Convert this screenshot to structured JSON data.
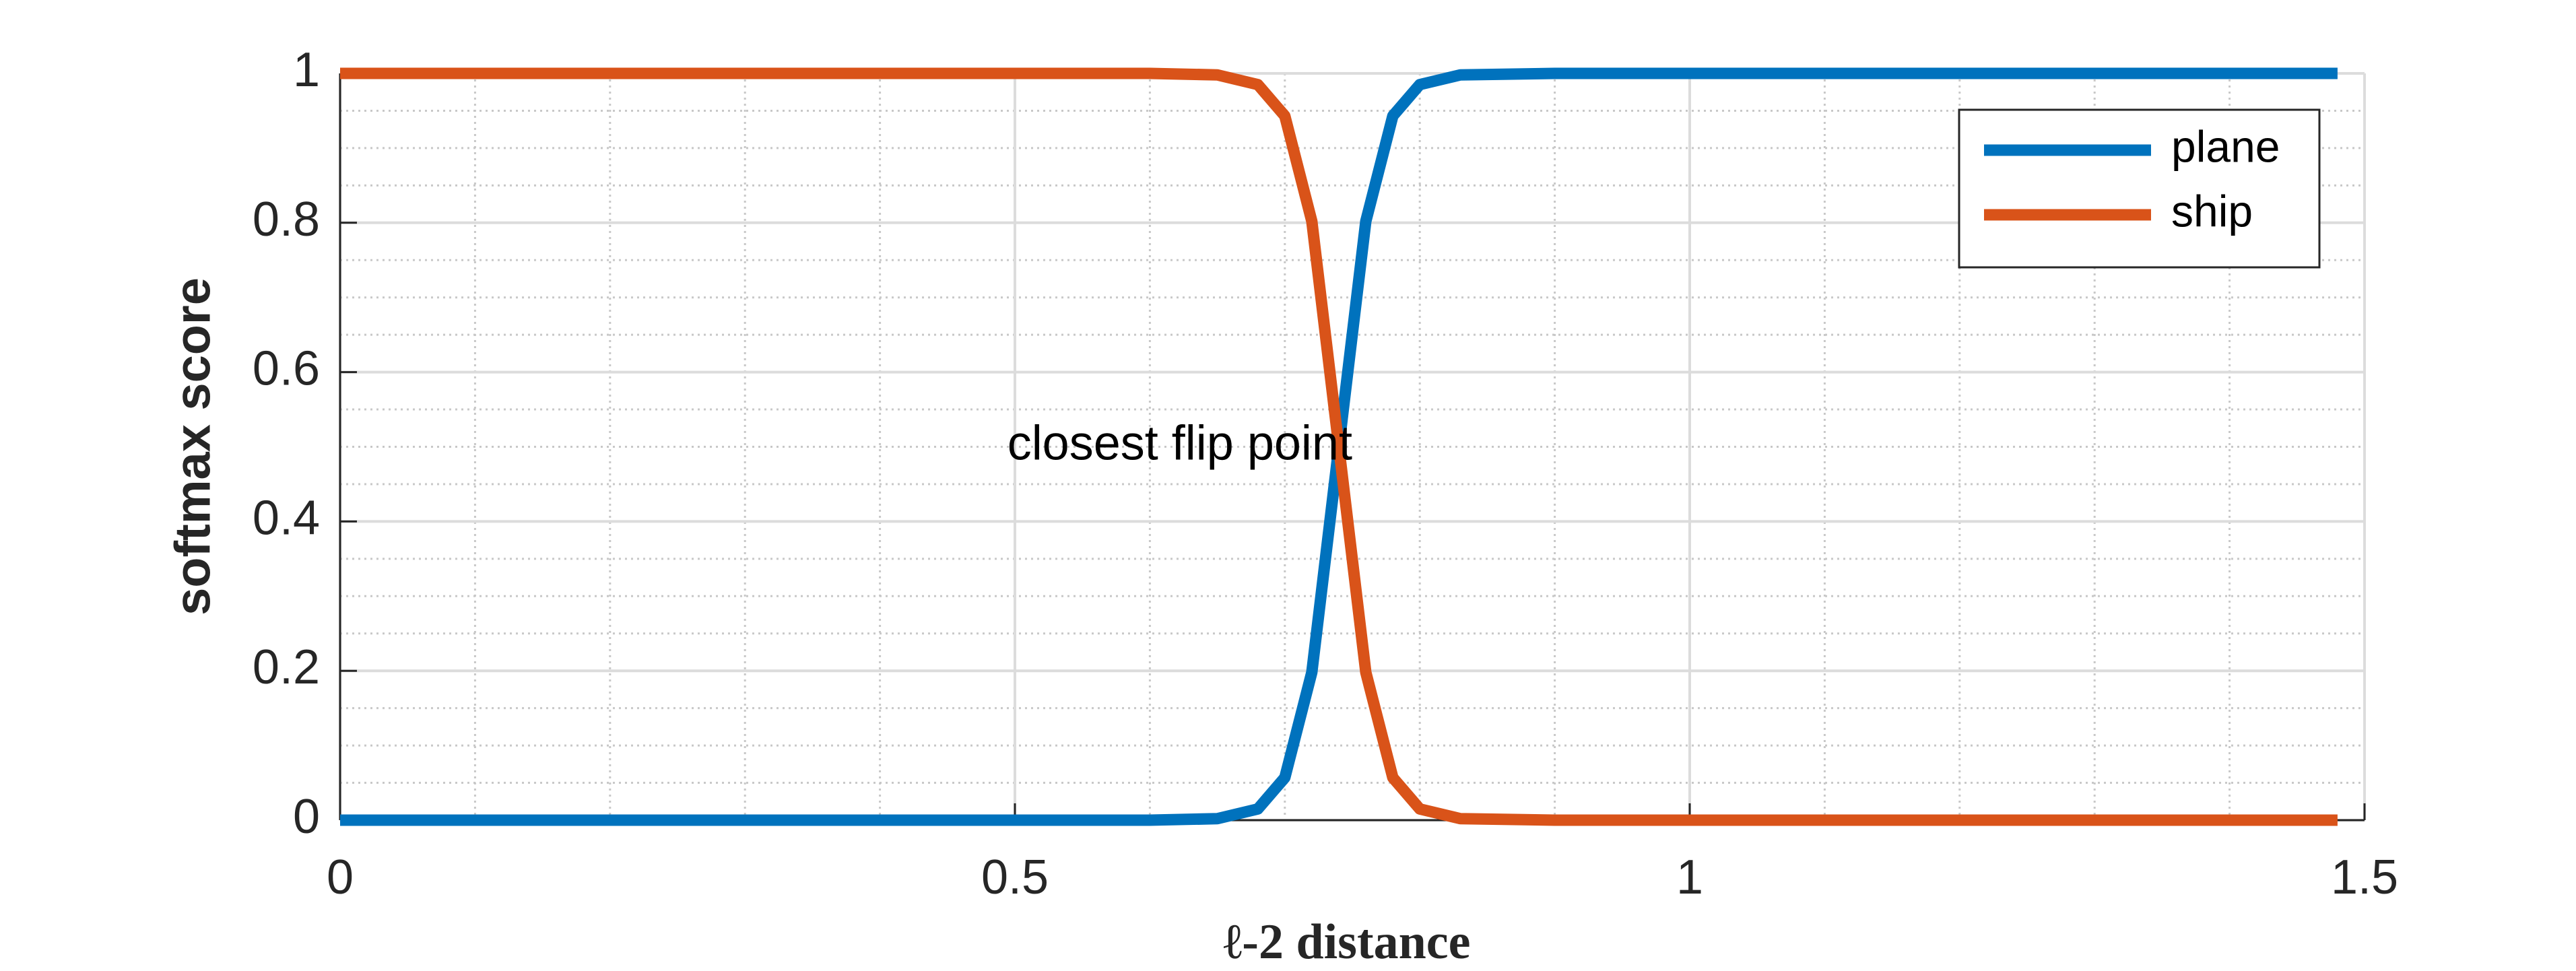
{
  "chart_data": {
    "type": "line",
    "x_label": "ℓ-2 distance",
    "y_label": "softmax score",
    "annotation": {
      "text": "closest flip point",
      "x": 0.74,
      "y": 0.5
    },
    "x": [
      0,
      0.1,
      0.2,
      0.3,
      0.4,
      0.5,
      0.6,
      0.65,
      0.68,
      0.7,
      0.72,
      0.74,
      0.76,
      0.78,
      0.8,
      0.83,
      0.9,
      1.0,
      1.1,
      1.2,
      1.3,
      1.4,
      1.48
    ],
    "series": [
      {
        "name": "plane",
        "color": "#0072bd",
        "values": [
          0,
          0,
          0,
          0,
          0,
          0,
          0,
          0.002,
          0.015,
          0.057,
          0.198,
          0.5,
          0.802,
          0.943,
          0.985,
          0.998,
          1,
          1,
          1,
          1,
          1,
          1,
          1
        ]
      },
      {
        "name": "ship",
        "color": "#d95319",
        "values": [
          1,
          1,
          1,
          1,
          1,
          1,
          1,
          0.998,
          0.985,
          0.943,
          0.802,
          0.5,
          0.198,
          0.057,
          0.015,
          0.002,
          0,
          0,
          0,
          0,
          0,
          0,
          0
        ]
      }
    ],
    "xlim": [
      0,
      1.5
    ],
    "ylim": [
      0,
      1
    ],
    "xticks": [
      0,
      0.5,
      1,
      1.5
    ],
    "yticks": [
      0,
      0.2,
      0.4,
      0.6,
      0.8,
      1
    ],
    "grid": true,
    "minor_grid": true,
    "legend": "top-right"
  }
}
